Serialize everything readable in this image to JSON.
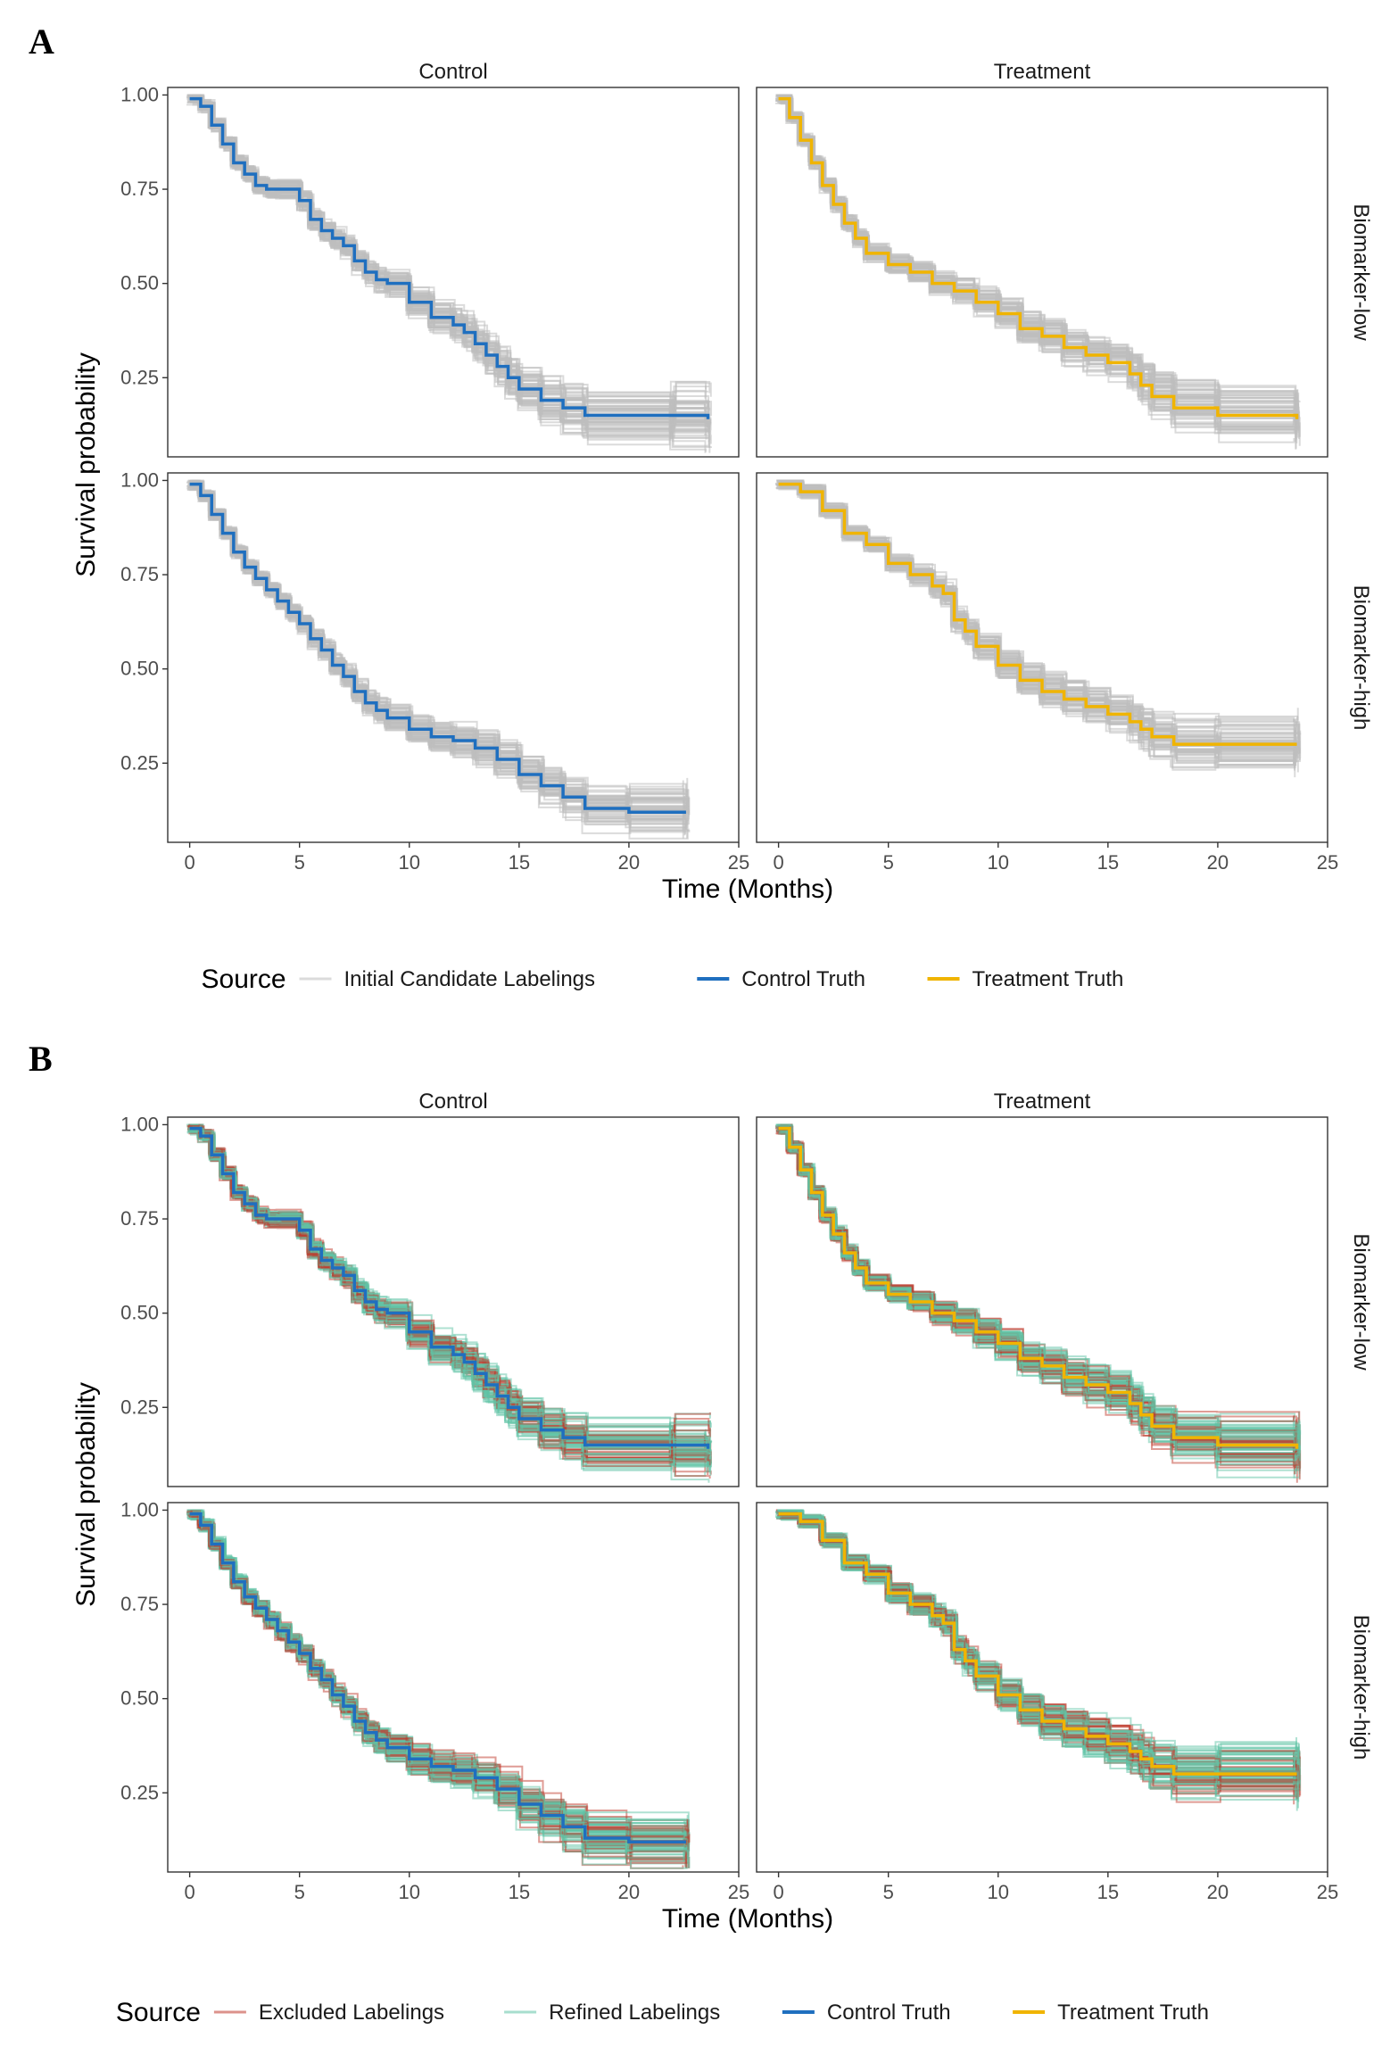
{
  "figure": {
    "panels": [
      "A",
      "B"
    ]
  },
  "chart_data": [
    {
      "panel": "A",
      "type": "line",
      "subtype": "kaplan-meier survival curves, faceted",
      "columns": [
        "Control",
        "Treatment"
      ],
      "rows": [
        "Biomarker-low",
        "Biomarker-high"
      ],
      "xlabel": "Time (Months)",
      "ylabel": "Survival probability",
      "xlim": [
        -1,
        25
      ],
      "xticks": [
        "0",
        "5",
        "10",
        "15",
        "20",
        "25"
      ],
      "xtick_values": [
        0,
        5,
        10,
        15,
        20,
        25
      ],
      "ylim": [
        0.04,
        1.02
      ],
      "yticks": [
        "0.25",
        "0.50",
        "0.75",
        "1.00"
      ],
      "ytick_values": [
        0.25,
        0.5,
        0.75,
        1.0
      ],
      "legend": {
        "title": "Source",
        "position": "bottom",
        "entries": [
          "Initial Candidate Labelings",
          "Control Truth",
          "Treatment Truth"
        ]
      },
      "band_series": [
        {
          "name": "Initial Candidate Labelings",
          "color": "#bdbdbd"
        }
      ],
      "truth_curves": {
        "Control|Biomarker-low": {
          "name": "Control Truth",
          "color": "#1f6fbf",
          "x": [
            0,
            0.5,
            1,
            1.5,
            2,
            2.5,
            3,
            3.5,
            4,
            5,
            5.5,
            6,
            6.5,
            7,
            7.5,
            8,
            8.5,
            9,
            10,
            11,
            12,
            12.5,
            13,
            13.5,
            14,
            14.5,
            15,
            16,
            17,
            18,
            22,
            23.6
          ],
          "y": [
            0.99,
            0.97,
            0.92,
            0.87,
            0.82,
            0.79,
            0.76,
            0.75,
            0.75,
            0.72,
            0.67,
            0.64,
            0.62,
            0.6,
            0.56,
            0.53,
            0.51,
            0.5,
            0.45,
            0.41,
            0.39,
            0.37,
            0.34,
            0.31,
            0.28,
            0.25,
            0.22,
            0.19,
            0.17,
            0.15,
            0.15,
            0.14
          ]
        },
        "Treatment|Biomarker-low": {
          "name": "Treatment Truth",
          "color": "#f0b400",
          "x": [
            0,
            0.5,
            1,
            1.5,
            2,
            2.5,
            3,
            3.5,
            4,
            5,
            6,
            7,
            8,
            9,
            10,
            11,
            12,
            13,
            14,
            15,
            16,
            16.5,
            17,
            18,
            20,
            23.6
          ],
          "y": [
            0.99,
            0.94,
            0.88,
            0.82,
            0.76,
            0.71,
            0.66,
            0.62,
            0.58,
            0.55,
            0.53,
            0.5,
            0.48,
            0.45,
            0.42,
            0.38,
            0.36,
            0.33,
            0.31,
            0.29,
            0.26,
            0.23,
            0.2,
            0.17,
            0.15,
            0.14
          ]
        },
        "Control|Biomarker-high": {
          "name": "Control Truth",
          "color": "#1f6fbf",
          "x": [
            0,
            0.5,
            1,
            1.5,
            2,
            2.5,
            3,
            3.5,
            4,
            4.5,
            5,
            5.5,
            6,
            6.5,
            7,
            7.5,
            8,
            8.5,
            9,
            10,
            11,
            12,
            13,
            14,
            15,
            16,
            17,
            18,
            20,
            22.6
          ],
          "y": [
            0.99,
            0.96,
            0.91,
            0.86,
            0.81,
            0.77,
            0.74,
            0.71,
            0.68,
            0.65,
            0.62,
            0.58,
            0.55,
            0.51,
            0.48,
            0.44,
            0.41,
            0.39,
            0.37,
            0.34,
            0.32,
            0.31,
            0.29,
            0.26,
            0.22,
            0.19,
            0.16,
            0.13,
            0.12,
            0.12
          ]
        },
        "Treatment|Biomarker-high": {
          "name": "Treatment Truth",
          "color": "#f0b400",
          "x": [
            0,
            1,
            2,
            3,
            4,
            5,
            6,
            7,
            7.5,
            8,
            8.5,
            9,
            10,
            11,
            12,
            13,
            14,
            15,
            16,
            16.5,
            17,
            18,
            20,
            23.6
          ],
          "y": [
            0.99,
            0.97,
            0.92,
            0.86,
            0.83,
            0.78,
            0.75,
            0.72,
            0.7,
            0.63,
            0.6,
            0.56,
            0.51,
            0.47,
            0.44,
            0.42,
            0.4,
            0.38,
            0.36,
            0.34,
            0.32,
            0.3,
            0.3,
            0.3
          ]
        }
      }
    },
    {
      "panel": "B",
      "type": "line",
      "subtype": "kaplan-meier survival curves, faceted",
      "columns": [
        "Control",
        "Treatment"
      ],
      "rows": [
        "Biomarker-low",
        "Biomarker-high"
      ],
      "xlabel": "Time (Months)",
      "ylabel": "Survival probability",
      "xlim": [
        -1,
        25
      ],
      "xticks": [
        "0",
        "5",
        "10",
        "15",
        "20",
        "25"
      ],
      "xtick_values": [
        0,
        5,
        10,
        15,
        20,
        25
      ],
      "ylim": [
        0.04,
        1.02
      ],
      "yticks": [
        "0.25",
        "0.50",
        "0.75",
        "1.00"
      ],
      "ytick_values": [
        0.25,
        0.5,
        0.75,
        1.0
      ],
      "legend": {
        "title": "Source",
        "position": "bottom",
        "entries": [
          "Excluded Labelings",
          "Refined Labelings",
          "Control Truth",
          "Treatment Truth"
        ]
      },
      "band_series": [
        {
          "name": "Excluded Labelings",
          "color": "#c0392b"
        },
        {
          "name": "Refined Labelings",
          "color": "#5fc3a5"
        }
      ],
      "truth_curves": "same as panel A"
    }
  ],
  "colors": {
    "candidate": "#bdbdbd",
    "excluded": "#c0392b",
    "refined": "#5fc3a5",
    "control_truth": "#1f6fbf",
    "treatment_truth": "#f0b400"
  }
}
